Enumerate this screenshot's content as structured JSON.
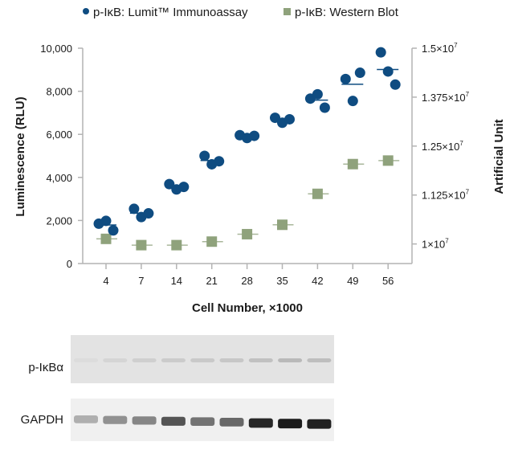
{
  "chart_data": {
    "type": "scatter",
    "legend_placement": "top",
    "grid": false,
    "xlabel": "Cell Number, ×1000",
    "ylabel": "Luminescence (RLU)",
    "y2label": "Artificial Unit",
    "categories": [
      "4",
      "7",
      "14",
      "21",
      "28",
      "35",
      "42",
      "49",
      "56"
    ],
    "ylim": [
      0,
      10000
    ],
    "yticks": [
      "0",
      "2,000",
      "4,000",
      "6,000",
      "8,000",
      "10,000"
    ],
    "ytick_values": [
      0,
      2000,
      4000,
      6000,
      8000,
      10000
    ],
    "y2lim": [
      9500000,
      15000000
    ],
    "y2ticks": [
      {
        "value": 10000000,
        "mantissa": "1",
        "exp": "7"
      },
      {
        "value": 11250000,
        "mantissa": "1.125",
        "exp": "7"
      },
      {
        "value": 12500000,
        "mantissa": "1.25",
        "exp": "7"
      },
      {
        "value": 13750000,
        "mantissa": "1.375",
        "exp": "7"
      },
      {
        "value": 15000000,
        "mantissa": "1.5",
        "exp": "7"
      }
    ],
    "series": [
      {
        "name": "p-IκB: Lumit™ Immunoassay",
        "axis": "left",
        "marker": "circle",
        "color": "#0f4c81",
        "replicates": [
          [
            1850,
            1980,
            1540
          ],
          [
            2540,
            2160,
            2330
          ],
          [
            3690,
            3440,
            3560
          ],
          [
            5000,
            4610,
            4750
          ],
          [
            5960,
            5830,
            5930
          ],
          [
            6770,
            6540,
            6700
          ],
          [
            7660,
            7860,
            7240
          ],
          [
            8570,
            7550,
            8860
          ],
          [
            9810,
            8920,
            8310
          ]
        ]
      },
      {
        "name": "p-IκB: Western Blot",
        "axis": "right",
        "marker": "square",
        "color": "#8fa27c",
        "values": [
          10130000,
          9970000,
          9970000,
          10060000,
          10250000,
          10490000,
          11280000,
          12040000,
          12130000
        ]
      }
    ]
  },
  "blot": {
    "rows": [
      {
        "label": "p-IκBα",
        "band_intensity": [
          0.03,
          0.06,
          0.09,
          0.11,
          0.12,
          0.13,
          0.16,
          0.2,
          0.17
        ]
      },
      {
        "label": "GAPDH",
        "band_intensity": [
          0.25,
          0.4,
          0.45,
          0.7,
          0.55,
          0.6,
          0.92,
          0.97,
          0.95
        ]
      }
    ]
  }
}
